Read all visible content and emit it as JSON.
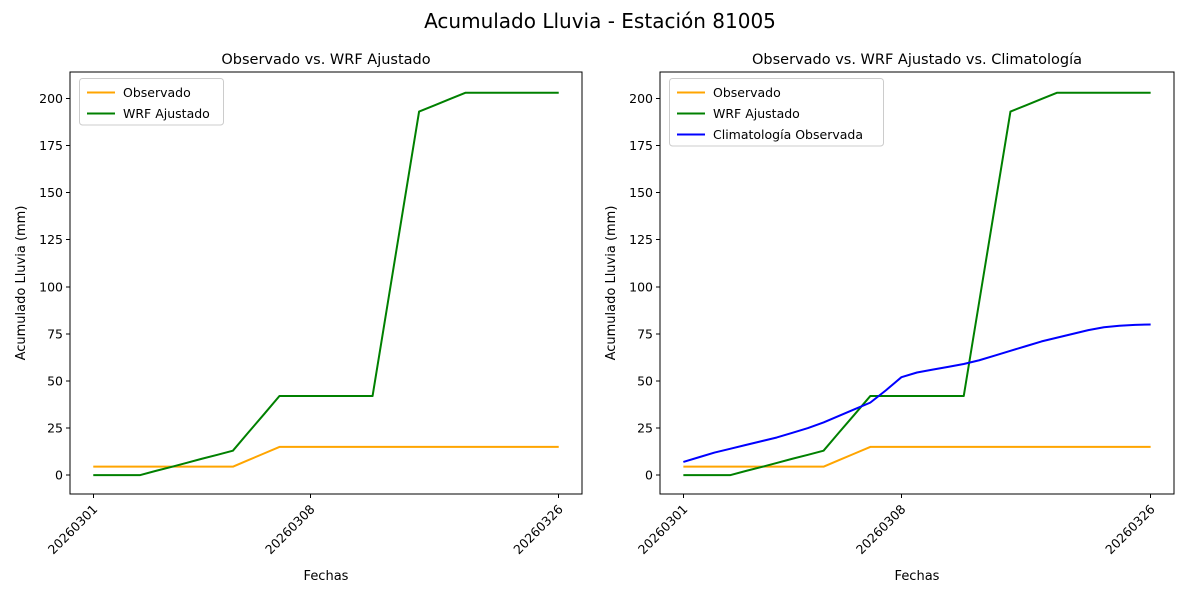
{
  "figure": {
    "suptitle": "Acumulado Lluvia - Estación 81005"
  },
  "chart_data": [
    {
      "type": "line",
      "title": "Observado vs. WRF Ajustado",
      "xlabel": "Fechas",
      "ylabel": "Acumulado Lluvia (mm)",
      "n_points": 31,
      "xtick_indices": [
        0,
        14,
        30
      ],
      "xtick_labels": [
        "20260301",
        "20260308",
        "20260326"
      ],
      "yticks": [
        0,
        25,
        50,
        75,
        100,
        125,
        150,
        175,
        200
      ],
      "ylim": [
        -10,
        214
      ],
      "xlim": [
        -1.5,
        31.5
      ],
      "grid": false,
      "legend_position": "upper-left",
      "series": [
        {
          "name": "Observado",
          "color": "#FFA500",
          "values": [
            4.5,
            4.5,
            4.5,
            4.5,
            4.5,
            4.5,
            4.5,
            4.5,
            4.5,
            4.5,
            8,
            11.5,
            15,
            15,
            15,
            15,
            15,
            15,
            15,
            15,
            15,
            15,
            15,
            15,
            15,
            15,
            15,
            15,
            15,
            15,
            15
          ]
        },
        {
          "name": "WRF Ajustado",
          "color": "#008000",
          "values": [
            0,
            0,
            0,
            0,
            2.2,
            4.3,
            6.5,
            8.7,
            10.8,
            13,
            22.7,
            32.3,
            42,
            42,
            42,
            42,
            42,
            42,
            42,
            92.3,
            142.7,
            193,
            196.3,
            199.7,
            203,
            203,
            203,
            203,
            203,
            203,
            203
          ]
        }
      ]
    },
    {
      "type": "line",
      "title": "Observado vs. WRF Ajustado vs. Climatología",
      "xlabel": "Fechas",
      "ylabel": "Acumulado Lluvia (mm)",
      "n_points": 31,
      "xtick_indices": [
        0,
        14,
        30
      ],
      "xtick_labels": [
        "20260301",
        "20260308",
        "20260326"
      ],
      "yticks": [
        0,
        25,
        50,
        75,
        100,
        125,
        150,
        175,
        200
      ],
      "ylim": [
        -10,
        214
      ],
      "xlim": [
        -1.5,
        31.5
      ],
      "grid": false,
      "legend_position": "upper-left",
      "series": [
        {
          "name": "Observado",
          "color": "#FFA500",
          "values": [
            4.5,
            4.5,
            4.5,
            4.5,
            4.5,
            4.5,
            4.5,
            4.5,
            4.5,
            4.5,
            8,
            11.5,
            15,
            15,
            15,
            15,
            15,
            15,
            15,
            15,
            15,
            15,
            15,
            15,
            15,
            15,
            15,
            15,
            15,
            15,
            15
          ]
        },
        {
          "name": "WRF Ajustado",
          "color": "#008000",
          "values": [
            0,
            0,
            0,
            0,
            2.2,
            4.3,
            6.5,
            8.7,
            10.8,
            13,
            22.7,
            32.3,
            42,
            42,
            42,
            42,
            42,
            42,
            42,
            92.3,
            142.7,
            193,
            196.3,
            199.7,
            203,
            203,
            203,
            203,
            203,
            203,
            203
          ]
        },
        {
          "name": "Climatología Observada",
          "color": "#0000FF",
          "values": [
            7,
            9.5,
            12,
            14,
            16,
            18,
            20,
            22.5,
            25,
            28,
            31.5,
            35,
            38.5,
            45,
            52,
            54.5,
            56,
            57.5,
            59,
            61,
            63.5,
            66,
            68.5,
            71,
            73,
            75,
            77,
            78.5,
            79.3,
            79.8,
            80
          ]
        }
      ]
    }
  ]
}
